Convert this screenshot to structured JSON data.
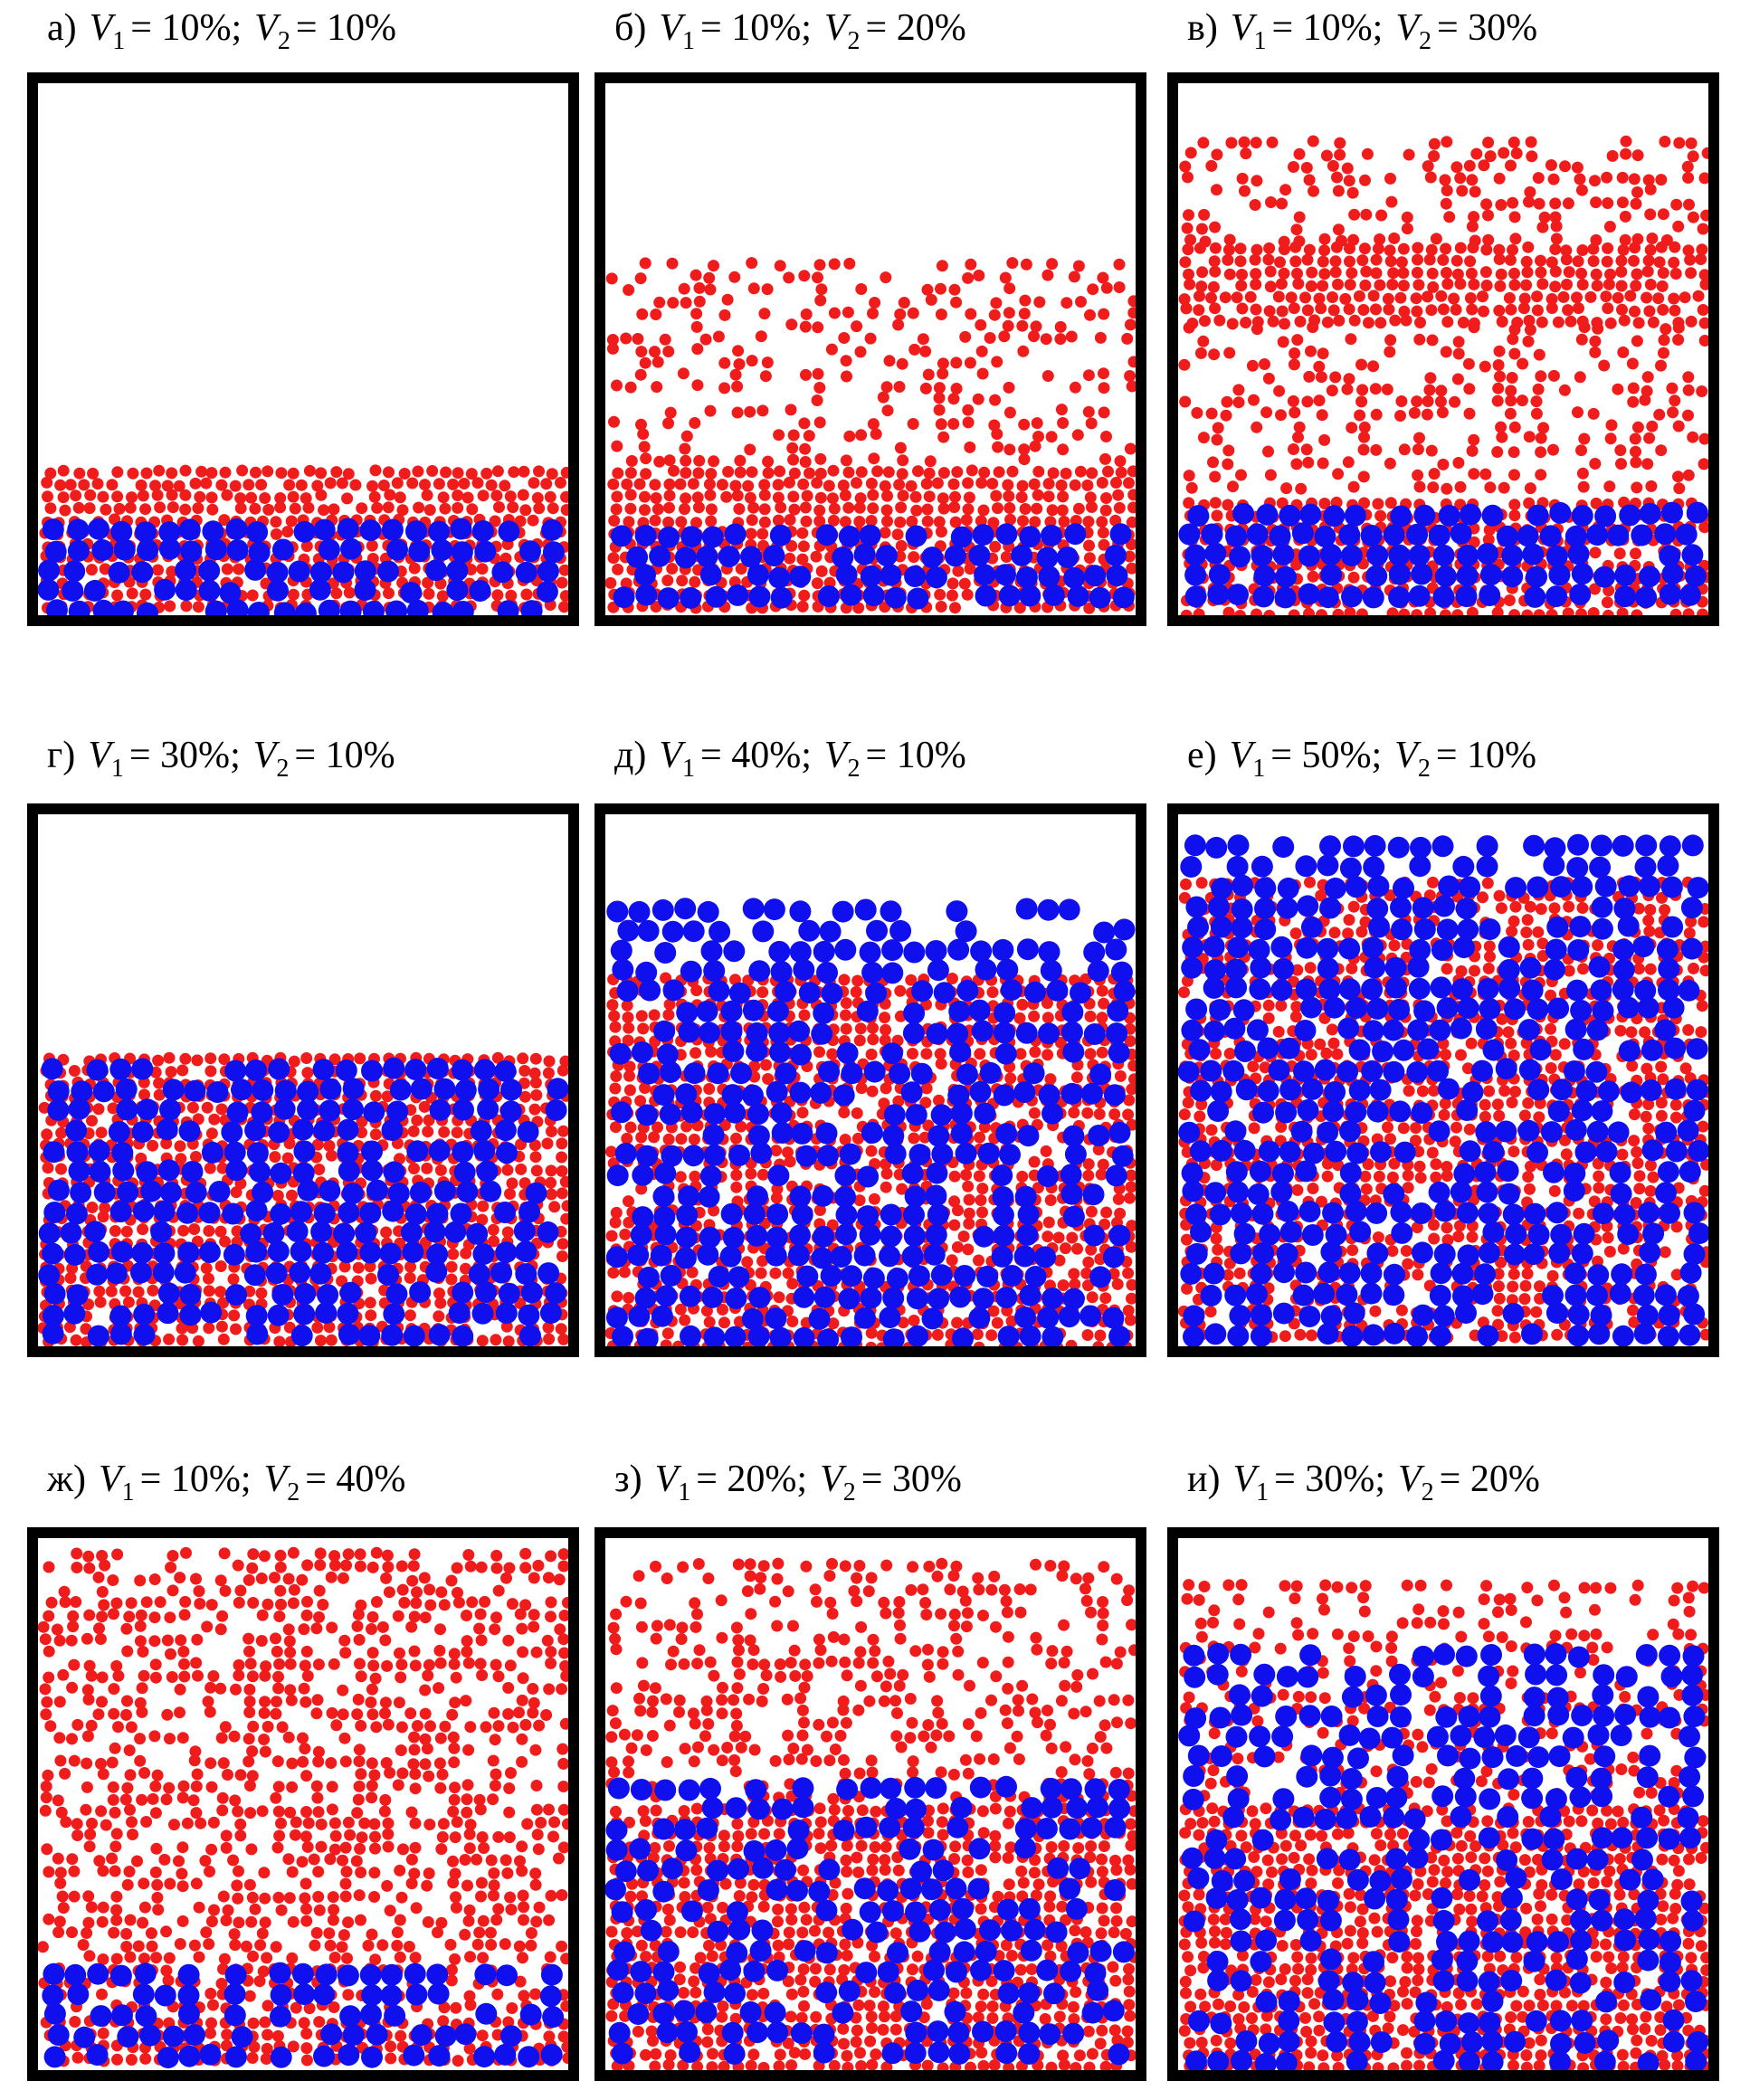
{
  "panels": [
    {
      "letter": "а)",
      "terms": [
        {
          "symbol": "V",
          "index": "1",
          "value": "= 10%"
        },
        {
          "symbol": "V",
          "index": "2",
          "value": "= 10%"
        }
      ],
      "separator": ";"
    },
    {
      "letter": "б)",
      "terms": [
        {
          "symbol": "V",
          "index": "1",
          "value": "= 10%"
        },
        {
          "symbol": "V",
          "index": "2",
          "value": "= 20%"
        }
      ],
      "separator": ";"
    },
    {
      "letter": "в)",
      "terms": [
        {
          "symbol": "V",
          "index": "1",
          "value": "= 10%"
        },
        {
          "symbol": "V",
          "index": "2",
          "value": "= 30%"
        }
      ],
      "separator": ";"
    },
    {
      "letter": "г)",
      "terms": [
        {
          "symbol": "V",
          "index": "1",
          "value": "= 30%"
        },
        {
          "symbol": "V",
          "index": "2",
          "value": "= 10%"
        }
      ],
      "separator": ";"
    },
    {
      "letter": "д)",
      "terms": [
        {
          "symbol": "V",
          "index": "1",
          "value": "= 40%"
        },
        {
          "symbol": "V",
          "index": "2",
          "value": "= 10%"
        }
      ],
      "separator": ";"
    },
    {
      "letter": "е)",
      "terms": [
        {
          "symbol": "V",
          "index": "1",
          "value": "= 50%"
        },
        {
          "symbol": "V",
          "index": "2",
          "value": "= 10%"
        }
      ],
      "separator": ";"
    },
    {
      "letter": "ж)",
      "terms": [
        {
          "symbol": "V",
          "index": "1",
          "value": "= 10%"
        },
        {
          "symbol": "V",
          "index": "2",
          "value": "= 40%"
        }
      ],
      "separator": ";"
    },
    {
      "letter": "з)",
      "terms": [
        {
          "symbol": "V",
          "index": "1",
          "value": "= 20%"
        },
        {
          "symbol": "V",
          "index": "2",
          "value": "= 30%"
        }
      ],
      "separator": ";"
    },
    {
      "letter": "и)",
      "terms": [
        {
          "symbol": "V",
          "index": "1",
          "value": "= 30%"
        },
        {
          "symbol": "V",
          "index": "2",
          "value": "= 20%"
        }
      ],
      "separator": ";"
    }
  ]
}
